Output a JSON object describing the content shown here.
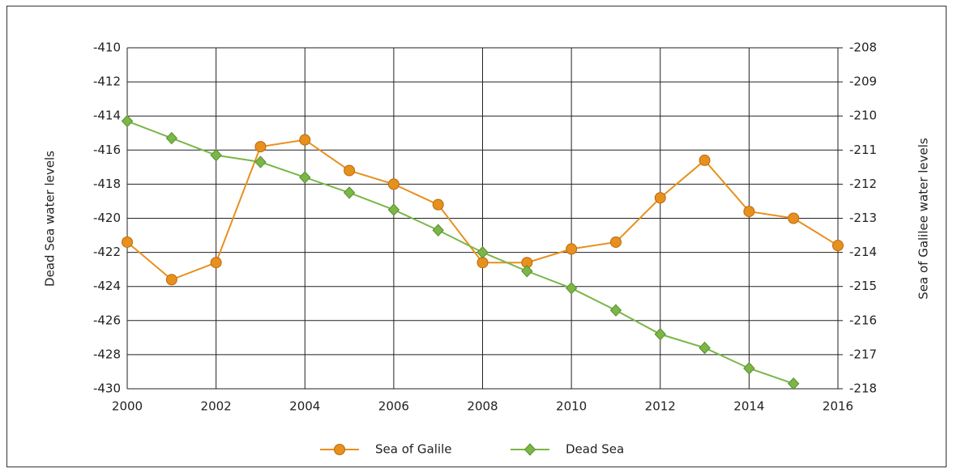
{
  "chart_data": {
    "type": "line",
    "x": [
      2000,
      2001,
      2002,
      2003,
      2004,
      2005,
      2006,
      2007,
      2008,
      2009,
      2010,
      2011,
      2012,
      2013,
      2014,
      2015,
      2016
    ],
    "xlim": [
      2000,
      2016
    ],
    "xticks": [
      2000,
      2002,
      2004,
      2006,
      2008,
      2010,
      2012,
      2014,
      2016
    ],
    "ylabel": "Dead Sea water levels",
    "ylim": [
      -430,
      -410
    ],
    "yticks": [
      -410,
      -412,
      -414,
      -416,
      -418,
      -420,
      -422,
      -424,
      -426,
      -428,
      -430
    ],
    "y2label": "Sea of Galilee water levels",
    "y2lim": [
      -218,
      -208
    ],
    "y2ticks": [
      -208,
      -209,
      -210,
      -211,
      -212,
      -213,
      -214,
      -215,
      -216,
      -217,
      -218
    ],
    "grid": true,
    "legend": "bottom",
    "series": [
      {
        "name": "Sea of Galile",
        "color": "#e8901e",
        "marker": "circle",
        "axis": "y2",
        "values": [
          -213.7,
          -214.8,
          -214.3,
          -210.9,
          -210.7,
          -211.6,
          -212.0,
          -212.6,
          -214.3,
          -214.3,
          -213.9,
          -213.7,
          -212.4,
          -211.3,
          -212.8,
          -213.0,
          -213.8
        ]
      },
      {
        "name": "Dead Sea",
        "color": "#7ab648",
        "marker": "diamond",
        "values": [
          -414.3,
          -415.3,
          -416.3,
          -416.7,
          -417.6,
          -418.5,
          -419.5,
          -420.7,
          -422.0,
          -423.1,
          -424.1,
          -425.4,
          -426.8,
          -427.6,
          -428.8,
          -429.7,
          null
        ]
      }
    ]
  }
}
